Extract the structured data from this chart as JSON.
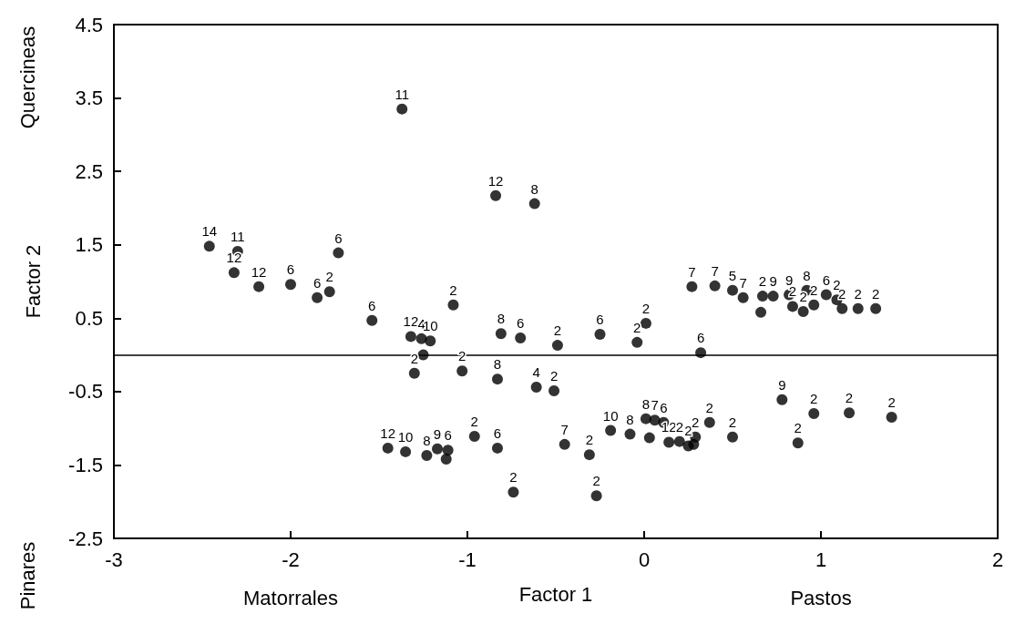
{
  "chart_data": {
    "type": "scatter",
    "xlabel": "Factor 1",
    "ylabel": "Factor 2",
    "annotations": [
      "Quercineas",
      "Pinares",
      "Matorrales",
      "Pastos",
      {
        "text": "11",
        "x": -1.37,
        "y": 3.35
      },
      {
        "text": "14",
        "x": -2.46,
        "y": 1.48
      },
      {
        "text": "11",
        "x": -2.3,
        "y": 1.41
      },
      {
        "text": "12",
        "x": -2.32,
        "y": 1.12
      },
      {
        "text": "12",
        "x": -2.18,
        "y": 0.93
      },
      {
        "text": "6",
        "x": -2.0,
        "y": 0.96
      },
      {
        "text": "6",
        "x": -1.73,
        "y": 1.39
      },
      {
        "text": "6",
        "x": -1.85,
        "y": 0.78
      },
      {
        "text": "2",
        "x": -1.78,
        "y": 0.86
      },
      {
        "text": "12",
        "x": -0.84,
        "y": 2.17
      },
      {
        "text": "8",
        "x": -0.62,
        "y": 2.06
      },
      {
        "text": "6",
        "x": -1.54,
        "y": 0.47
      },
      {
        "text": "12",
        "x": -1.32,
        "y": 0.25
      },
      {
        "text": "4",
        "x": -1.26,
        "y": 0.22
      },
      {
        "text": "10",
        "x": -1.21,
        "y": 0.19
      },
      {
        "text": "2",
        "x": -1.3,
        "y": -0.25
      },
      {
        "text": "12",
        "x": -1.45,
        "y": -1.27
      },
      {
        "text": "10",
        "x": -1.35,
        "y": -1.32
      },
      {
        "text": "8",
        "x": -1.23,
        "y": -1.37
      },
      {
        "text": "2",
        "x": -1.08,
        "y": 0.68
      },
      {
        "text": "8",
        "x": -0.81,
        "y": 0.29
      },
      {
        "text": "6",
        "x": -0.7,
        "y": 0.23
      },
      {
        "text": "2",
        "x": -0.49,
        "y": 0.13
      },
      {
        "text": "6",
        "x": -0.25,
        "y": 0.28
      },
      {
        "text": "2",
        "x": -0.04,
        "y": 0.17
      },
      {
        "text": "2",
        "x": 0.01,
        "y": 0.43
      },
      {
        "text": "6",
        "x": 0.32,
        "y": 0.03
      },
      {
        "text": "2",
        "x": -1.03,
        "y": -0.22
      },
      {
        "text": "8",
        "x": -0.83,
        "y": -0.33
      },
      {
        "text": "4",
        "x": -0.61,
        "y": -0.44
      },
      {
        "text": "2",
        "x": -0.51,
        "y": -0.49
      },
      {
        "text": "9",
        "x": -1.17,
        "y": -1.28
      },
      {
        "text": "6",
        "x": -1.11,
        "y": -1.3
      },
      {
        "text": "2",
        "x": -0.96,
        "y": -1.11
      },
      {
        "text": "6",
        "x": -0.83,
        "y": -1.27
      },
      {
        "text": "2",
        "x": -0.74,
        "y": -1.87
      },
      {
        "text": "7",
        "x": -0.45,
        "y": -1.22
      },
      {
        "text": "2",
        "x": -0.31,
        "y": -1.36
      },
      {
        "text": "2",
        "x": -0.27,
        "y": -1.92
      },
      {
        "text": "10",
        "x": -0.19,
        "y": -1.03
      },
      {
        "text": "8",
        "x": -0.08,
        "y": -1.08
      },
      {
        "text": "8",
        "x": 0.01,
        "y": -0.87
      },
      {
        "text": "7",
        "x": 0.06,
        "y": -0.89
      },
      {
        "text": "6",
        "x": 0.11,
        "y": -0.92
      },
      {
        "text": "12",
        "x": 0.14,
        "y": -1.19
      },
      {
        "text": "2",
        "x": 0.2,
        "y": -1.18
      },
      {
        "text": "2",
        "x": 0.25,
        "y": -1.24
      },
      {
        "text": "2",
        "x": 0.29,
        "y": -1.12
      },
      {
        "text": "2",
        "x": 0.37,
        "y": -0.92
      },
      {
        "text": "2",
        "x": 0.5,
        "y": -1.12
      },
      {
        "text": "9",
        "x": 0.78,
        "y": -0.61
      },
      {
        "text": "2",
        "x": 0.87,
        "y": -1.2
      },
      {
        "text": "2",
        "x": 0.96,
        "y": -0.8
      },
      {
        "text": "2",
        "x": 1.16,
        "y": -0.79
      },
      {
        "text": "2",
        "x": 1.4,
        "y": -0.85
      },
      {
        "text": "7",
        "x": 0.27,
        "y": 0.93
      },
      {
        "text": "7",
        "x": 0.4,
        "y": 0.94
      },
      {
        "text": "5",
        "x": 0.5,
        "y": 0.88
      },
      {
        "text": "7",
        "x": 0.56,
        "y": 0.78
      },
      {
        "text": "2",
        "x": 0.67,
        "y": 0.8
      },
      {
        "text": "9",
        "x": 0.73,
        "y": 0.8
      },
      {
        "text": "9",
        "x": 0.82,
        "y": 0.82
      },
      {
        "text": "8",
        "x": 0.92,
        "y": 0.88
      },
      {
        "text": "6",
        "x": 1.03,
        "y": 0.82
      },
      {
        "text": "2",
        "x": 1.09,
        "y": 0.75
      },
      {
        "text": "2",
        "x": 0.84,
        "y": 0.66
      },
      {
        "text": "2",
        "x": 0.9,
        "y": 0.59
      },
      {
        "text": "2",
        "x": 0.96,
        "y": 0.68
      },
      {
        "text": "2",
        "x": 1.12,
        "y": 0.63
      },
      {
        "text": "2",
        "x": 1.21,
        "y": 0.63
      },
      {
        "text": "2",
        "x": 1.31,
        "y": 0.63
      }
    ],
    "xlim": [
      -3,
      2
    ],
    "xticks": [
      -3,
      -2,
      -1,
      0,
      1,
      2
    ],
    "ylim": [
      -2.5,
      4.5
    ],
    "yticks": [
      -2.5,
      -1.5,
      -0.5,
      0.5,
      1.5,
      2.5,
      3.5,
      4.5
    ],
    "grid": false,
    "marker": "circle",
    "ref_lines": [
      {
        "axis": "y",
        "value": 0,
        "color": "#000000"
      }
    ],
    "series": [
      {
        "color": "#000000",
        "x": [
          -1.37,
          -2.46,
          -2.3,
          -2.32,
          -2.18,
          -2.0,
          -1.73,
          -1.85,
          -1.78,
          -0.84,
          -0.62,
          -1.54,
          -1.32,
          -1.26,
          -1.21,
          -1.25,
          -1.3,
          -1.45,
          -1.35,
          -1.23,
          -1.08,
          -0.81,
          -0.7,
          -0.49,
          -0.25,
          -0.04,
          0.01,
          0.32,
          -1.03,
          -0.83,
          -0.61,
          -0.51,
          -1.17,
          -1.11,
          -1.12,
          -0.96,
          -0.83,
          -0.74,
          -0.45,
          -0.31,
          -0.27,
          -0.19,
          -0.08,
          0.01,
          0.06,
          0.11,
          0.03,
          0.14,
          0.2,
          0.25,
          0.29,
          0.28,
          0.37,
          0.5,
          0.78,
          0.87,
          0.96,
          1.16,
          1.4,
          0.27,
          0.4,
          0.5,
          0.56,
          0.67,
          0.73,
          0.82,
          0.92,
          1.03,
          1.09,
          0.66,
          0.84,
          0.9,
          0.96,
          1.12,
          1.21,
          1.31
        ],
        "values": [
          3.35,
          1.48,
          1.41,
          1.12,
          0.93,
          0.96,
          1.39,
          0.78,
          0.86,
          2.17,
          2.06,
          0.47,
          0.25,
          0.22,
          0.19,
          0.0,
          -0.25,
          -1.27,
          -1.32,
          -1.37,
          0.68,
          0.29,
          0.23,
          0.13,
          0.28,
          0.17,
          0.43,
          0.03,
          -0.22,
          -0.33,
          -0.44,
          -0.49,
          -1.28,
          -1.3,
          -1.42,
          -1.11,
          -1.27,
          -1.87,
          -1.22,
          -1.36,
          -1.92,
          -1.03,
          -1.08,
          -0.87,
          -0.89,
          -0.92,
          -1.13,
          -1.19,
          -1.18,
          -1.24,
          -1.12,
          -1.22,
          -0.92,
          -1.12,
          -0.61,
          -1.2,
          -0.8,
          -0.79,
          -0.85,
          0.93,
          0.94,
          0.88,
          0.78,
          0.8,
          0.8,
          0.82,
          0.88,
          0.82,
          0.75,
          0.58,
          0.66,
          0.59,
          0.68,
          0.63,
          0.63,
          0.63
        ]
      }
    ]
  }
}
